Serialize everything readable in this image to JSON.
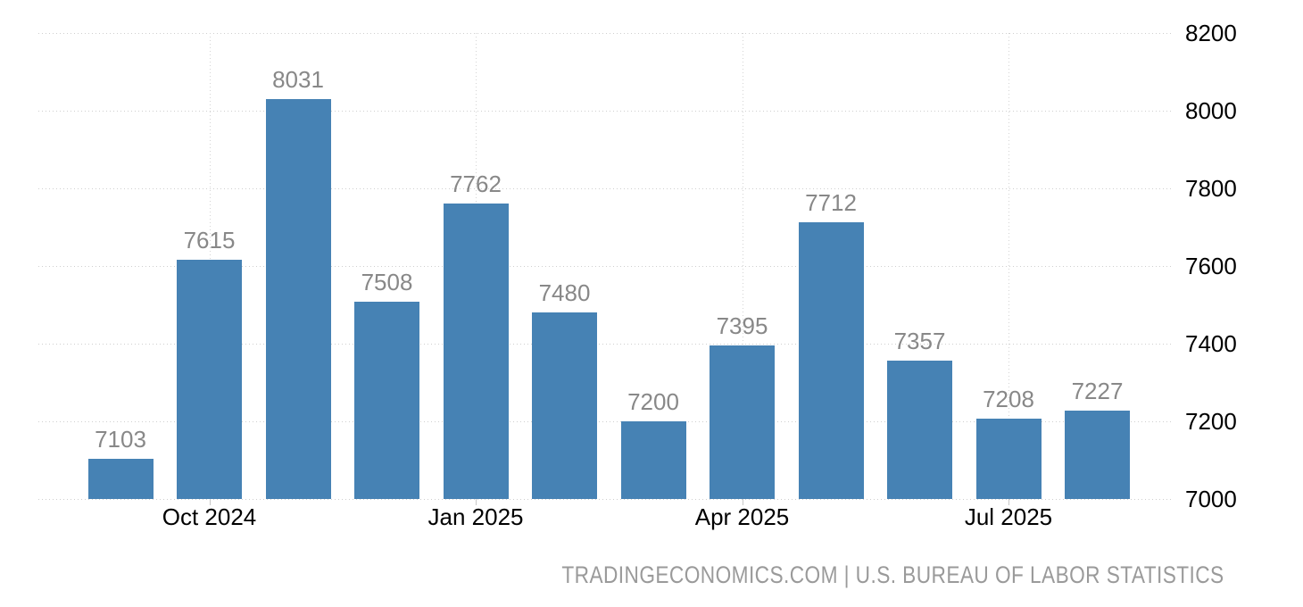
{
  "chart_data": {
    "type": "bar",
    "title": "",
    "xlabel": "",
    "ylabel": "",
    "values": [
      7103,
      7615,
      8031,
      7508,
      7762,
      7480,
      7200,
      7395,
      7712,
      7357,
      7208,
      7227
    ],
    "bar_labels": [
      "7103",
      "7615",
      "8031",
      "7508",
      "7762",
      "7480",
      "7200",
      "7395",
      "7712",
      "7357",
      "7208",
      "7227"
    ],
    "x_tick_labels": [
      "Oct 2024",
      "Jan 2025",
      "Apr 2025",
      "Jul 2025"
    ],
    "x_tick_bar_indices": [
      1,
      4,
      7,
      10
    ],
    "y_tick_labels": [
      "8200",
      "8000",
      "7800",
      "7600",
      "7400",
      "7200",
      "7000"
    ],
    "ylim": [
      7000,
      8200
    ],
    "grid": "dotted horizontal and vertical gridlines",
    "legend": "none",
    "colors": {
      "bar": "#4682B4",
      "value_label": "#888888",
      "axis_label": "#000000",
      "gridline": "#cfcfcf",
      "tick_mark": "#c8c8c8",
      "attribution": "#9a9a9a",
      "background": "#ffffff"
    }
  },
  "footer": {
    "attribution": "TRADINGECONOMICS.COM | U.S. BUREAU OF LABOR STATISTICS"
  }
}
